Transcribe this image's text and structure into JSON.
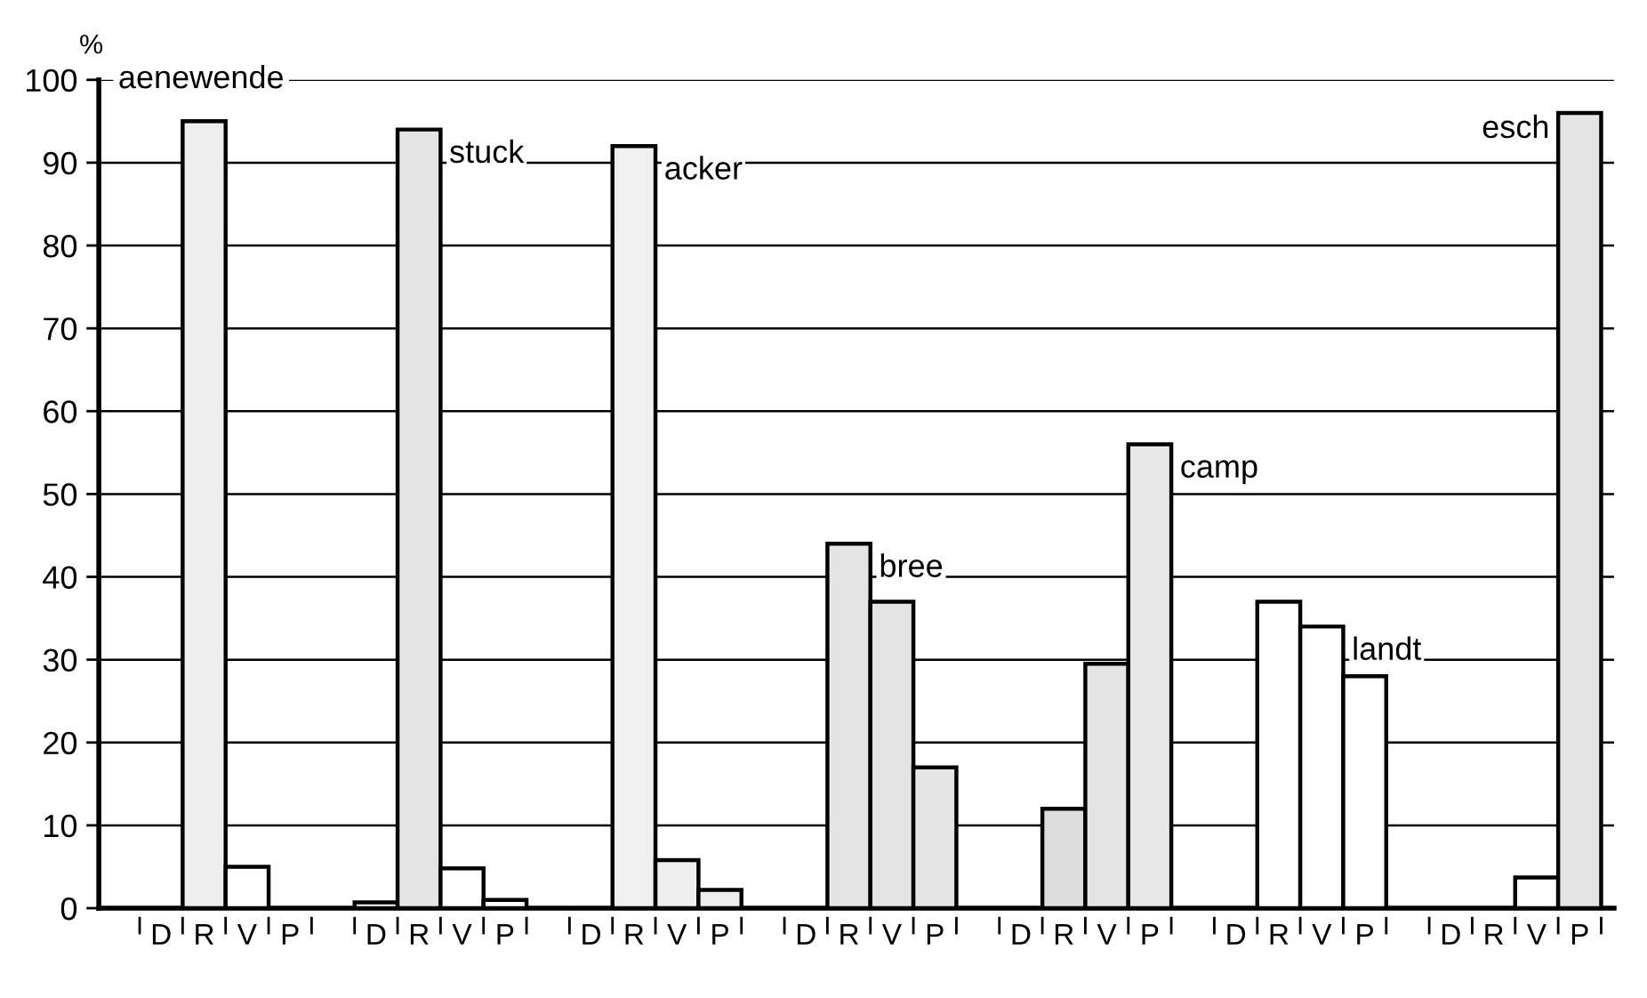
{
  "chart_data": {
    "type": "bar",
    "ylabel": "%",
    "categories": [
      "D",
      "R",
      "V",
      "P",
      null,
      "D",
      "R",
      "V",
      "P",
      null,
      "D",
      "R",
      "V",
      "P",
      null,
      "D",
      "R",
      "V",
      "P",
      null,
      "D",
      "R",
      "V",
      "P",
      null,
      "D",
      "R",
      "V",
      "P",
      null,
      "D",
      "R",
      "V",
      "P"
    ],
    "values": [
      0,
      95,
      5,
      0,
      null,
      0.7,
      94,
      4.8,
      1,
      null,
      0,
      92,
      5.8,
      2.2,
      null,
      0,
      44,
      37,
      17,
      null,
      0,
      12,
      29.5,
      56,
      null,
      0,
      37,
      34,
      28,
      null,
      0,
      0,
      3.7,
      96
    ],
    "colors": [
      "#eeeeee",
      "#eeeeee",
      "#ffffff",
      "#ffffff",
      null,
      "#ffffff",
      "#e4e4e4",
      "#ffffff",
      "#ffffff",
      null,
      "#eeeeee",
      "#f0f0f0",
      "#eeeeee",
      "#eeeeee",
      null,
      "#e4e4e4",
      "#e4e4e4",
      "#e4e4e4",
      "#e4e4e4",
      null,
      "#dddddd",
      "#dddddd",
      "#e4e4e4",
      "#e8e8e8",
      null,
      "#ffffff",
      "#ffffff",
      "#ffffff",
      "#ffffff",
      null,
      "#ffffff",
      "#ffffff",
      "#ffffff",
      "#e4e4e4"
    ],
    "ylim": [
      0,
      100
    ],
    "yticks": [
      0,
      10,
      20,
      30,
      40,
      50,
      60,
      70,
      80,
      90,
      100
    ],
    "grid": "y",
    "annotations": [
      "aenewende",
      "stuck",
      "acker",
      "bree",
      "camp",
      "landt",
      "esch"
    ]
  }
}
